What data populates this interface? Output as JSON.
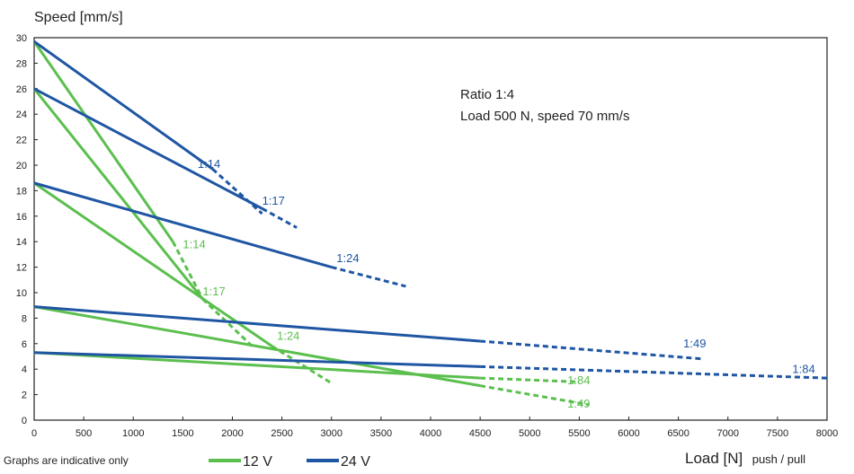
{
  "chart_data": {
    "type": "line",
    "ylabel": "Speed [mm/s]",
    "xlabel": "Load [N]",
    "xlabel_suffix": "push / pull",
    "xlim": [
      0,
      8000
    ],
    "ylim": [
      0,
      30
    ],
    "x_ticks": [
      0,
      500,
      1000,
      1500,
      2000,
      2500,
      3000,
      3500,
      4000,
      4500,
      5000,
      5500,
      6000,
      6500,
      7000,
      7500,
      8000
    ],
    "y_ticks": [
      0,
      2,
      4,
      6,
      8,
      10,
      12,
      14,
      16,
      18,
      20,
      22,
      24,
      26,
      28,
      30
    ],
    "grid": false,
    "annotation": [
      "Ratio 1:4",
      "Load 500 N, speed 70 mm/s"
    ],
    "footnote": "Graphs are indicative only",
    "legend": [
      {
        "label": "12 V",
        "color": "#5bbf4e"
      },
      {
        "label": "24 V",
        "color": "#1f56a3"
      }
    ],
    "series": [
      {
        "voltage": "12 V",
        "ratio": "1:14",
        "color": "#5bbf4e",
        "solid": [
          [
            0,
            29.7
          ],
          [
            1400,
            14
          ]
        ],
        "dashed": [
          [
            1400,
            14
          ],
          [
            1700,
            9.5
          ]
        ],
        "label_at": [
          1500,
          13.5
        ]
      },
      {
        "voltage": "12 V",
        "ratio": "1:17",
        "color": "#5bbf4e",
        "solid": [
          [
            0,
            26
          ],
          [
            1700,
            9.5
          ]
        ],
        "dashed": [
          [
            1700,
            9.5
          ],
          [
            2200,
            5.8
          ]
        ],
        "label_at": [
          1700,
          9.8
        ]
      },
      {
        "voltage": "12 V",
        "ratio": "1:24",
        "color": "#5bbf4e",
        "solid": [
          [
            0,
            18.6
          ],
          [
            2400,
            5.8
          ]
        ],
        "dashed": [
          [
            2400,
            5.8
          ],
          [
            3000,
            2.9
          ]
        ],
        "label_at": [
          2450,
          6.3
        ]
      },
      {
        "voltage": "12 V",
        "ratio": "1:49",
        "color": "#5bbf4e",
        "solid": [
          [
            0,
            8.9
          ],
          [
            4500,
            2.7
          ]
        ],
        "dashed": [
          [
            4500,
            2.7
          ],
          [
            5600,
            1.2
          ]
        ],
        "label_at": [
          5380,
          1.0
        ]
      },
      {
        "voltage": "12 V",
        "ratio": "1:84",
        "color": "#5bbf4e",
        "solid": [
          [
            0,
            5.3
          ],
          [
            4500,
            3.3
          ]
        ],
        "dashed": [
          [
            4500,
            3.3
          ],
          [
            5500,
            3.0
          ]
        ],
        "label_at": [
          5380,
          2.8
        ]
      },
      {
        "voltage": "24 V",
        "ratio": "1:14",
        "color": "#1f56a3",
        "solid": [
          [
            0,
            29.7
          ],
          [
            1800,
            19.7
          ]
        ],
        "dashed": [
          [
            1800,
            19.7
          ],
          [
            2300,
            16.2
          ]
        ],
        "label_at": [
          1650,
          19.8
        ]
      },
      {
        "voltage": "24 V",
        "ratio": "1:17",
        "color": "#1f56a3",
        "solid": [
          [
            0,
            26
          ],
          [
            2300,
            16.6
          ]
        ],
        "dashed": [
          [
            2300,
            16.6
          ],
          [
            2650,
            15.1
          ]
        ],
        "label_at": [
          2300,
          16.9
        ]
      },
      {
        "voltage": "24 V",
        "ratio": "1:24",
        "color": "#1f56a3",
        "solid": [
          [
            0,
            18.6
          ],
          [
            3000,
            12.0
          ]
        ],
        "dashed": [
          [
            3000,
            12.0
          ],
          [
            3750,
            10.5
          ]
        ],
        "label_at": [
          3050,
          12.4
        ]
      },
      {
        "voltage": "24 V",
        "ratio": "1:49",
        "color": "#1f56a3",
        "solid": [
          [
            0,
            8.9
          ],
          [
            4500,
            6.2
          ]
        ],
        "dashed": [
          [
            4500,
            6.2
          ],
          [
            6750,
            4.8
          ]
        ],
        "label_at": [
          6550,
          5.7
        ]
      },
      {
        "voltage": "24 V",
        "ratio": "1:84",
        "color": "#1f56a3",
        "solid": [
          [
            0,
            5.3
          ],
          [
            4500,
            4.2
          ]
        ],
        "dashed": [
          [
            4500,
            4.2
          ],
          [
            8000,
            3.3
          ]
        ],
        "label_at": [
          7650,
          3.7
        ]
      }
    ]
  }
}
